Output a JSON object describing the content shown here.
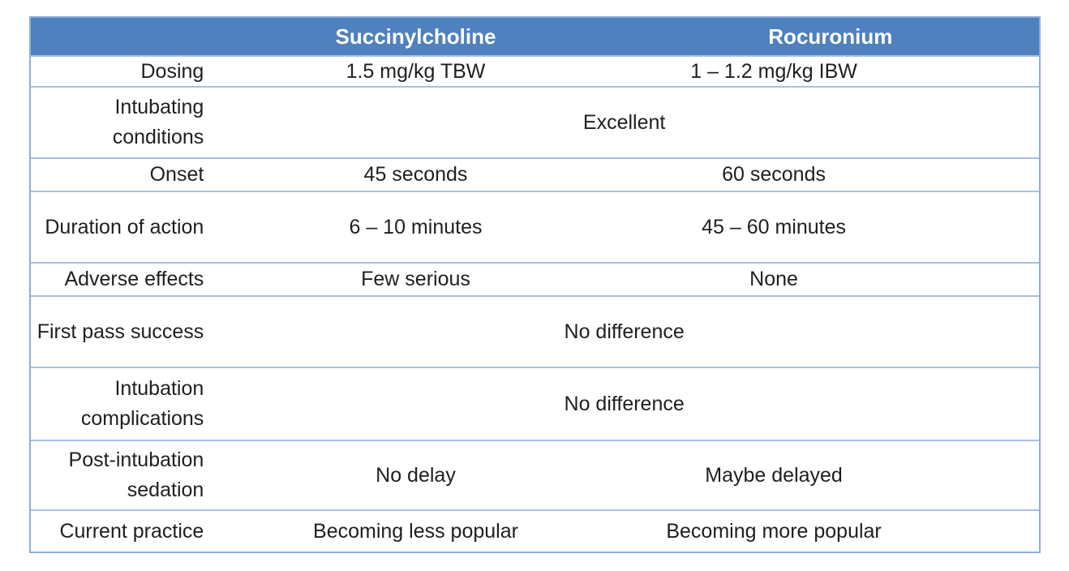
{
  "colors": {
    "header_background": "#4E81BD",
    "header_text": "#FFFFFF",
    "inner_border": "#A8C0E0",
    "outer_border": "#8FAED6",
    "body_text": "#1F1F1F"
  },
  "table": {
    "header": {
      "label_col": "",
      "col_succinylcholine": "Succinylcholine",
      "col_rocuronium": "Rocuronium"
    },
    "rows": [
      {
        "label": "Dosing",
        "succinylcholine": "1.5 mg/kg TBW",
        "rocuronium": "1 – 1.2 mg/kg IBW"
      },
      {
        "label": "Intubating conditions",
        "merged_value": "Excellent"
      },
      {
        "label": "Onset",
        "succinylcholine": "45 seconds",
        "rocuronium": "60 seconds"
      },
      {
        "label": "Duration of action",
        "succinylcholine": "6 – 10 minutes",
        "rocuronium": "45 – 60 minutes"
      },
      {
        "label": "Adverse effects",
        "succinylcholine": "Few serious",
        "rocuronium": "None"
      },
      {
        "label": "First pass success",
        "merged_value": "No difference"
      },
      {
        "label": "Intubation complications",
        "merged_value": "No difference"
      },
      {
        "label": "Post-intubation sedation",
        "succinylcholine": "No delay",
        "rocuronium": "Maybe delayed"
      },
      {
        "label": "Current practice",
        "succinylcholine": "Becoming less popular",
        "rocuronium": "Becoming more popular"
      }
    ]
  }
}
